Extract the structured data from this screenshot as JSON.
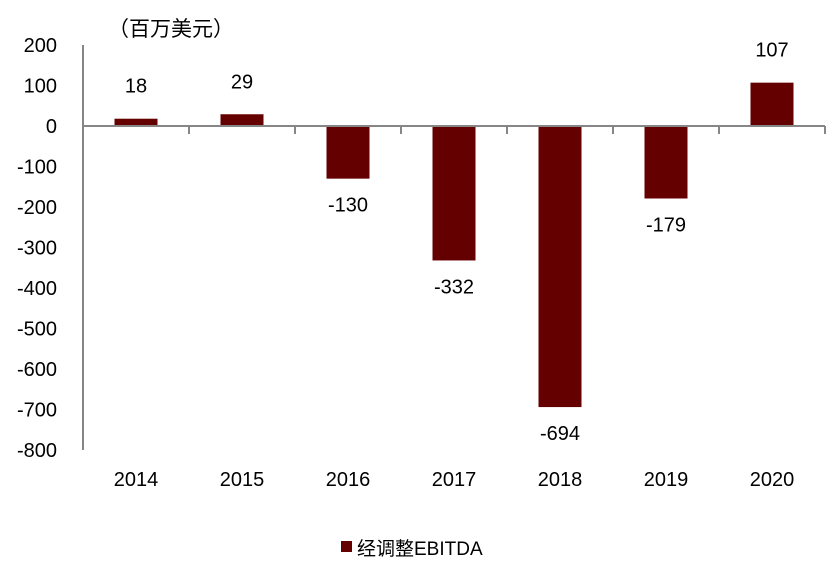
{
  "chart_data": {
    "type": "bar",
    "unit_label": "（百万美元）",
    "categories": [
      "2014",
      "2015",
      "2016",
      "2017",
      "2018",
      "2019",
      "2020"
    ],
    "series": [
      {
        "name": "经调整EBITDA",
        "values": [
          18,
          29,
          -130,
          -332,
          -694,
          -179,
          107
        ],
        "color": "#640000"
      }
    ],
    "data_labels": [
      "18",
      "29",
      "-130",
      "-332",
      "-694",
      "-179",
      "107"
    ],
    "ylim": [
      -800,
      200
    ],
    "yticks": [
      200,
      100,
      0,
      -100,
      -200,
      -300,
      -400,
      -500,
      -600,
      -700,
      -800
    ],
    "grid": false,
    "legend": "bottom",
    "axis_color": "#868686"
  }
}
